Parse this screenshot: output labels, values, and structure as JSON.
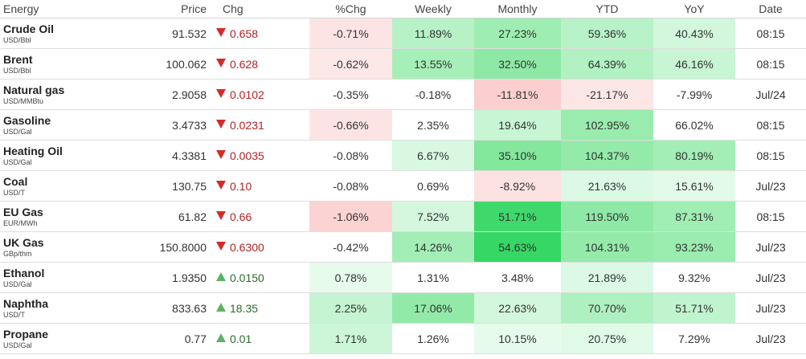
{
  "header": {
    "energy": "Energy",
    "price": "Price",
    "chg": "Chg",
    "pct_chg": "%Chg",
    "weekly": "Weekly",
    "monthly": "Monthly",
    "ytd": "YTD",
    "yoy": "YoY",
    "date": "Date"
  },
  "colors": {
    "down_arrow": "#d62a2a",
    "up_arrow": "#5bb363"
  },
  "rows": [
    {
      "name": "Crude Oil",
      "unit": "USD/Bbl",
      "price": "91.532",
      "dir": "down",
      "chg": "0.658",
      "pct": "-0.71%",
      "weekly": "11.89%",
      "monthly": "27.23%",
      "ytd": "59.36%",
      "yoy": "40.43%",
      "date": "08:15",
      "bg": [
        "#fde4e4",
        "#b6f2c6",
        "#9eedb3",
        "#b8f2c8",
        "#d2f7dc"
      ]
    },
    {
      "name": "Brent",
      "unit": "USD/Bbl",
      "price": "100.062",
      "dir": "down",
      "chg": "0.628",
      "pct": "-0.62%",
      "weekly": "13.55%",
      "monthly": "32.50%",
      "ytd": "64.39%",
      "yoy": "46.16%",
      "date": "08:15",
      "bg": [
        "#fde8e8",
        "#a6efb8",
        "#8ee9a6",
        "#b1f1c2",
        "#c8f5d4"
      ]
    },
    {
      "name": "Natural gas",
      "unit": "USD/MMBtu",
      "price": "2.9058",
      "dir": "down",
      "chg": "0.0102",
      "pct": "-0.35%",
      "weekly": "-0.18%",
      "monthly": "-11.81%",
      "ytd": "-21.17%",
      "yoy": "-7.99%",
      "date": "Jul/24",
      "bg": [
        "",
        "",
        "#fbcfcf",
        "#fde6e6",
        ""
      ]
    },
    {
      "name": "Gasoline",
      "unit": "USD/Gal",
      "price": "3.4733",
      "dir": "down",
      "chg": "0.0231",
      "pct": "-0.66%",
      "weekly": "2.35%",
      "monthly": "19.64%",
      "ytd": "102.95%",
      "yoy": "66.02%",
      "date": "08:15",
      "bg": [
        "#fde4e4",
        "",
        "#c8f5d4",
        "#99ecad",
        "#ace f0bf"
      ]
    },
    {
      "name": "Heating Oil",
      "unit": "USD/Gal",
      "price": "4.3381",
      "dir": "down",
      "chg": "0.0035",
      "pct": "-0.08%",
      "weekly": "6.67%",
      "monthly": "35.10%",
      "ytd": "104.37%",
      "yoy": "80.19%",
      "date": "08:15",
      "bg": [
        "",
        "#d8f8e1",
        "#83e79c",
        "#94eba9",
        "#a3eeb6"
      ]
    },
    {
      "name": "Coal",
      "unit": "USD/T",
      "price": "130.75",
      "dir": "down",
      "chg": "0.10",
      "pct": "-0.08%",
      "weekly": "0.69%",
      "monthly": "-8.92%",
      "ytd": "21.63%",
      "yoy": "15.61%",
      "date": "Jul/23",
      "bg": [
        "",
        "",
        "#fde2e2",
        "#dcf9e5",
        "#e3fae9"
      ]
    },
    {
      "name": "EU Gas",
      "unit": "EUR/MWh",
      "price": "61.82",
      "dir": "down",
      "chg": "0.66",
      "pct": "-1.06%",
      "weekly": "7.52%",
      "monthly": "51.71%",
      "ytd": "119.50%",
      "yoy": "87.31%",
      "date": "08:15",
      "bg": [
        "#fbd3d3",
        "#d4f7de",
        "#3fd96b",
        "#8ee9a6",
        "#a0eeb4"
      ]
    },
    {
      "name": "UK Gas",
      "unit": "GBp/thm",
      "price": "150.8000",
      "dir": "down",
      "chg": "0.6300",
      "pct": "-0.42%",
      "weekly": "14.26%",
      "monthly": "54.63%",
      "ytd": "104.31%",
      "yoy": "93.23%",
      "date": "Jul/23",
      "bg": [
        "",
        "#a3eeb6",
        "#36d764",
        "#94eba9",
        "#9aedae"
      ]
    },
    {
      "name": "Ethanol",
      "unit": "USD/Gal",
      "price": "1.9350",
      "dir": "up",
      "chg": "0.0150",
      "pct": "0.78%",
      "weekly": "1.31%",
      "monthly": "3.48%",
      "ytd": "21.89%",
      "yoy": "9.32%",
      "date": "Jul/23",
      "bg": [
        "#e6fbec",
        "",
        "",
        "#dcf9e5",
        ""
      ]
    },
    {
      "name": "Naphtha",
      "unit": "USD/T",
      "price": "833.63",
      "dir": "up",
      "chg": "18.35",
      "pct": "2.25%",
      "weekly": "17.06%",
      "monthly": "22.63%",
      "ytd": "70.70%",
      "yoy": "51.71%",
      "date": "Jul/23",
      "bg": [
        "#c4f4d1",
        "#92eaa8",
        "#d2f7dc",
        "#aef0c0",
        "#c0f4ce"
      ]
    },
    {
      "name": "Propane",
      "unit": "USD/Gal",
      "price": "0.77",
      "dir": "up",
      "chg": "0.01",
      "pct": "1.71%",
      "weekly": "1.26%",
      "monthly": "10.15%",
      "ytd": "20.75%",
      "yoy": "7.29%",
      "date": "Jul/23",
      "bg": [
        "#cdf6d9",
        "",
        "#e6fbec",
        "#e0fae7",
        ""
      ]
    }
  ]
}
